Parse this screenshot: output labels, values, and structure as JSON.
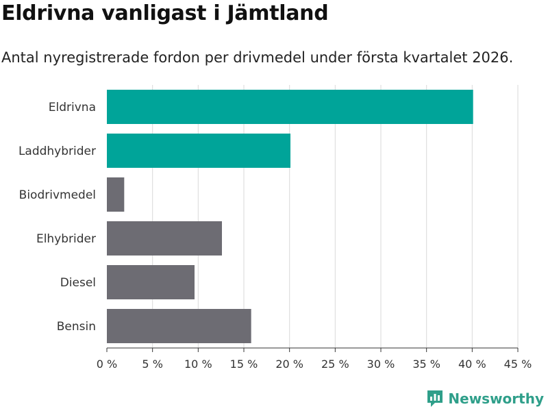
{
  "title": "Eldrivna vanligast i Jämtland",
  "subtitle": "Antal nyregistrerade fordon per drivmedel under första kvartalet 2026.",
  "brand": "Newsworthy",
  "colors": {
    "highlight": "#00a499",
    "default": "#6d6c73",
    "grid": "#d9d9d9",
    "brand": "#2f9f8a"
  },
  "chart_data": {
    "type": "bar",
    "orientation": "horizontal",
    "categories": [
      "Eldrivna",
      "Laddhybrider",
      "Biodrivmedel",
      "Elhybrider",
      "Diesel",
      "Bensin"
    ],
    "values": [
      40.1,
      20.1,
      1.9,
      12.6,
      9.6,
      15.8
    ],
    "highlighted": [
      true,
      true,
      false,
      false,
      false,
      false
    ],
    "xlim": [
      0,
      45
    ],
    "xticks": [
      0,
      5,
      10,
      15,
      20,
      25,
      30,
      35,
      40,
      45
    ],
    "xtick_labels": [
      "0 %",
      "5 %",
      "10 %",
      "15 %",
      "20 %",
      "25 %",
      "30 %",
      "35 %",
      "40 %",
      "45 %"
    ],
    "grid": true,
    "xlabel": "",
    "ylabel": ""
  }
}
